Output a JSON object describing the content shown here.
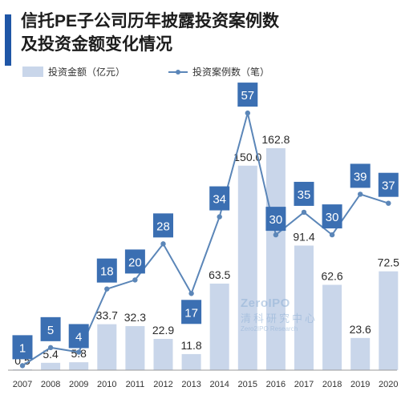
{
  "title_line1": "信托PE子公司历年披露投资案例数",
  "title_line2": "及投资金额变化情况",
  "watermark": {
    "logo_text": "ZeroIPO",
    "cn_text": "清科研究中心",
    "en_text": "Zero2IPO Research"
  },
  "colors": {
    "bar": "#c9d6ea",
    "line": "#5b86b8",
    "box": "#3b6fb2",
    "title_accent": "#1f56a6"
  },
  "chart_data": {
    "type": "bar+line",
    "categories": [
      "2007",
      "2008",
      "2009",
      "2010",
      "2011",
      "2012",
      "2013",
      "2014",
      "2015",
      "2016",
      "2017",
      "2018",
      "2019",
      "2020"
    ],
    "series": [
      {
        "name": "投资金额（亿元）",
        "type": "bar",
        "values": [
          0.5,
          5.4,
          5.8,
          33.7,
          32.3,
          22.9,
          11.8,
          63.5,
          150.0,
          162.8,
          91.4,
          62.6,
          23.6,
          72.5
        ],
        "labels": [
          "0.5",
          "5.4",
          "5.8",
          "33.7",
          "32.3",
          "22.9",
          "11.8",
          "63.5",
          "150.0",
          "162.8",
          "91.4",
          "62.6",
          "23.6",
          "72.5"
        ]
      },
      {
        "name": "投资案例数（笔）",
        "type": "line",
        "values": [
          1,
          5,
          4,
          18,
          20,
          28,
          17,
          34,
          57,
          30,
          35,
          30,
          39,
          37
        ]
      }
    ],
    "grid": false,
    "legend_position": "top-left"
  }
}
